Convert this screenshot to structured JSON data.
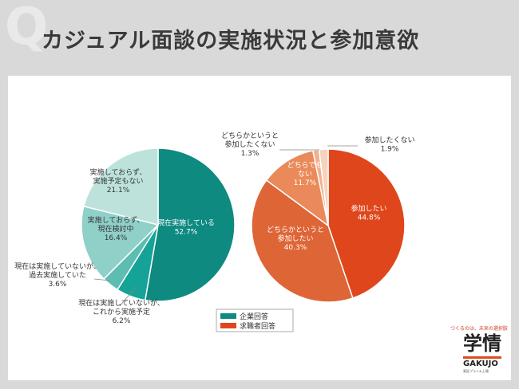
{
  "page": {
    "q_mark": "Q",
    "title": "カジュアル面談の実施状況と参加意欲"
  },
  "logo": {
    "tagline": "つくるのは、未来の選択肢",
    "kanji": "学情",
    "name": "GAKUJO",
    "sub": "東証プライム上場"
  },
  "legend": [
    {
      "label": "企業回答",
      "color": "#0e8a80"
    },
    {
      "label": "求職者回答",
      "color": "#e0461b"
    }
  ],
  "chart_data": [
    {
      "type": "pie",
      "series_label": "企業回答",
      "slices": [
        {
          "lines": [
            "現在実施している",
            "52.7%"
          ],
          "value": 52.7,
          "color": "#0e8a80",
          "label_color": "#ffffff"
        },
        {
          "lines": [
            "現在は実施していないが、",
            "これから実施予定",
            "6.2%"
          ],
          "value": 6.2,
          "color": "#14a396",
          "label_color": "#333333"
        },
        {
          "lines": [
            "現在は実施していないが、",
            "過去実施していた",
            "3.6%"
          ],
          "value": 3.6,
          "color": "#5ebdb3",
          "label_color": "#333333"
        },
        {
          "lines": [
            "実施しておらず、",
            "現在検討中",
            "16.4%"
          ],
          "value": 16.4,
          "color": "#8fd0c8",
          "label_color": "#333333"
        },
        {
          "lines": [
            "実施しておらず、",
            "実施予定もない",
            "21.1%"
          ],
          "value": 21.1,
          "color": "#bde2dc",
          "label_color": "#333333"
        }
      ]
    },
    {
      "type": "pie",
      "series_label": "求職者回答",
      "slices": [
        {
          "lines": [
            "参加したい",
            "44.8%"
          ],
          "value": 44.8,
          "color": "#e0461b",
          "label_color": "#ffffff"
        },
        {
          "lines": [
            "どちらかというと",
            "参加したい",
            "40.3%"
          ],
          "value": 40.3,
          "color": "#de6536",
          "label_color": "#ffffff"
        },
        {
          "lines": [
            "どちらでも",
            "ない",
            "11.7%"
          ],
          "value": 11.7,
          "color": "#ea8a5a",
          "label_color": "#ffffff"
        },
        {
          "lines": [
            "どちらかというと",
            "参加したくない",
            "1.3%"
          ],
          "value": 1.3,
          "color": "#f1b08c",
          "label_color": "#333333"
        },
        {
          "lines": [
            "参加したくない",
            "1.9%"
          ],
          "value": 1.9,
          "color": "#f7d3bd",
          "label_color": "#333333"
        }
      ]
    }
  ]
}
